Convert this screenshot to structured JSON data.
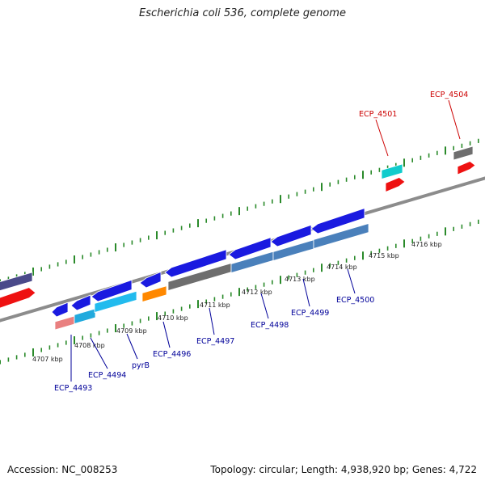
{
  "title": "Escherichia coli 536, complete genome",
  "footer": {
    "accession": "Accession: NC_008253",
    "topology": "Topology: circular; Length: 4,938,920 bp; Genes: 4,722"
  },
  "colors": {
    "backbone": "#8c8c8c",
    "ticks": "#2a8a2a",
    "label_top": "#cc0000",
    "label_bottom": "#000099"
  },
  "scale_labels": [
    "4707 kbp",
    "4708 kbp",
    "4709 kbp",
    "4710 kbp",
    "4711 kbp",
    "4712 kbp",
    "4713 kbp",
    "4714 kbp",
    "4715 kbp",
    "4716 kbp"
  ],
  "gene_labels": [
    "ECP_4493",
    "ECP_4494",
    "pyrB",
    "ECP_4496",
    "ECP_4497",
    "ECP_4498",
    "ECP_4499",
    "ECP_4500",
    "ECP_4501",
    "ECP_4504"
  ]
}
